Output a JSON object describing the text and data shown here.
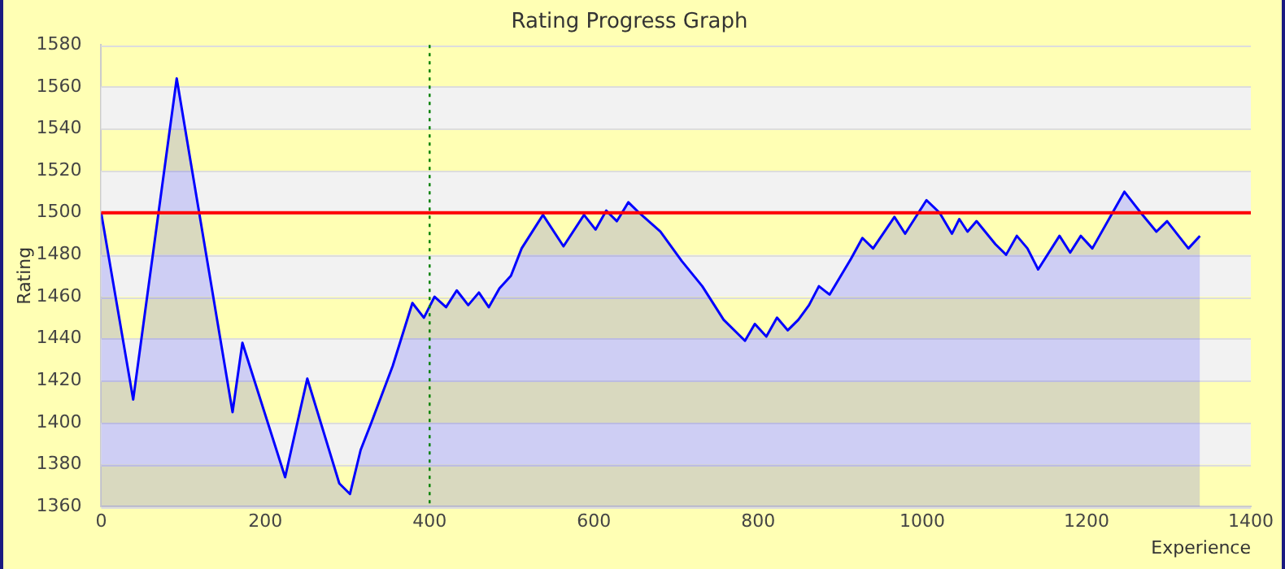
{
  "chart_data": {
    "type": "area",
    "title": "Rating Progress Graph",
    "xlabel": "Experience",
    "ylabel": "Rating",
    "x": [
      0,
      39,
      92,
      160,
      172,
      224,
      251,
      290,
      303,
      316,
      329,
      355,
      379,
      393,
      406,
      420,
      433,
      447,
      460,
      472,
      485,
      499,
      512,
      538,
      563,
      588,
      602,
      615,
      628,
      642,
      655,
      681,
      707,
      732,
      758,
      784,
      796,
      810,
      823,
      836,
      849,
      862,
      874,
      887,
      913,
      927,
      940,
      966,
      979,
      1005,
      1021,
      1036,
      1045,
      1055,
      1066,
      1089,
      1102,
      1115,
      1128,
      1141,
      1167,
      1180,
      1193,
      1207,
      1246,
      1266,
      1285,
      1298,
      1324,
      1338
    ],
    "series": [
      {
        "color": "#0000ff",
        "values": [
          1500,
          1411,
          1564,
          1405,
          1438,
          1374,
          1421,
          1371,
          1366,
          1387,
          1400,
          1427,
          1457,
          1450,
          1460,
          1455,
          1463,
          1456,
          1462,
          1455,
          1464,
          1470,
          1483,
          1499,
          1484,
          1499,
          1492,
          1501,
          1496,
          1505,
          1500,
          1491,
          1477,
          1465,
          1449,
          1439,
          1447,
          1441,
          1450,
          1444,
          1449,
          1456,
          1465,
          1461,
          1478,
          1488,
          1483,
          1498,
          1490,
          1506,
          1500,
          1490,
          1497,
          1491,
          1496,
          1485,
          1480,
          1489,
          1483,
          1473,
          1489,
          1481,
          1489,
          1483,
          1510,
          1500,
          1491,
          1496,
          1483,
          1489
        ]
      }
    ],
    "xlim": [
      0,
      1400
    ],
    "xticks": [
      0,
      200,
      400,
      600,
      800,
      1000,
      1200,
      1400
    ],
    "ylim": [
      1360,
      1580
    ],
    "yticks": [
      1360,
      1380,
      1400,
      1420,
      1440,
      1460,
      1480,
      1500,
      1520,
      1540,
      1560,
      1580
    ],
    "grid": "y",
    "legend": false,
    "marker": "none",
    "line_style": "solid",
    "ref_lines": [
      {
        "axis": "y",
        "value": 1500,
        "color": "#ff0000",
        "line_style": "solid"
      },
      {
        "axis": "x",
        "value": 400,
        "color": "#008000",
        "line_style": "dotted"
      }
    ]
  }
}
